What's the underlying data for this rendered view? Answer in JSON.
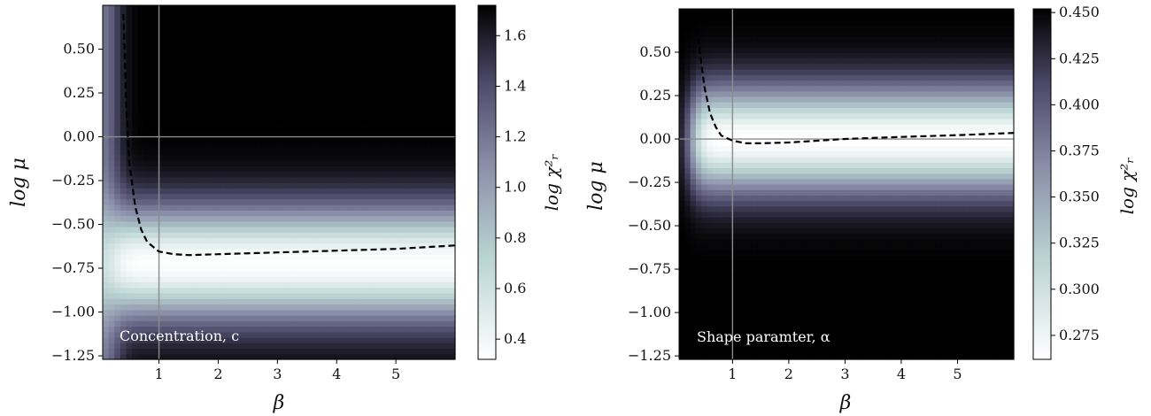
{
  "chart_data": [
    {
      "type": "heatmap",
      "annotation": "Concentration, c",
      "xlabel": "β",
      "ylabel": "log μ",
      "colorbar_label": "log χ²ᵣ",
      "xlim": [
        0.05,
        6.0
      ],
      "ylim": [
        -1.27,
        0.75
      ],
      "xticks": [
        1,
        2,
        3,
        4,
        5
      ],
      "xtick_labels": [
        "1",
        "2",
        "3",
        "4",
        "5"
      ],
      "yticks": [
        0.5,
        0.25,
        0.0,
        -0.25,
        -0.5,
        -0.75,
        -1.0,
        -1.25
      ],
      "ytick_labels": [
        "0.50",
        "0.25",
        "0.00",
        "−0.25",
        "−0.50",
        "−0.75",
        "−1.00",
        "−1.25"
      ],
      "crosshair": {
        "x": 1.0,
        "y": 0.0
      },
      "colorbar": {
        "range": [
          0.32,
          1.72
        ],
        "ticks": [
          0.4,
          0.6,
          0.8,
          1.0,
          1.2,
          1.4,
          1.6
        ],
        "tick_labels": [
          "0.4",
          "0.6",
          "0.8",
          "1.0",
          "1.2",
          "1.4",
          "1.6"
        ]
      },
      "field": {
        "min_log_mu": -0.72,
        "sigma_log_mu": 0.32,
        "floor": 0.33,
        "peak": 1.72
      },
      "dashed_curve": {
        "x": [
          0.4,
          0.45,
          0.5,
          0.6,
          0.7,
          0.8,
          1.0,
          1.25,
          1.5,
          2.0,
          3.0,
          4.0,
          5.0,
          6.0
        ],
        "y": [
          0.7,
          0.15,
          -0.15,
          -0.4,
          -0.53,
          -0.6,
          -0.655,
          -0.67,
          -0.675,
          -0.67,
          -0.66,
          -0.65,
          -0.64,
          -0.62
        ]
      }
    },
    {
      "type": "heatmap",
      "annotation": "Shape paramter, α",
      "xlabel": "β",
      "ylabel": "log μ",
      "colorbar_label": "log χ²ᵣ",
      "xlim": [
        0.05,
        6.0
      ],
      "ylim": [
        -1.27,
        0.75
      ],
      "xticks": [
        1,
        2,
        3,
        4,
        5
      ],
      "xtick_labels": [
        "1",
        "2",
        "3",
        "4",
        "5"
      ],
      "yticks": [
        0.5,
        0.25,
        0.0,
        -0.25,
        -0.5,
        -0.75,
        -1.0,
        -1.25
      ],
      "ytick_labels": [
        "0.50",
        "0.25",
        "0.00",
        "−0.25",
        "−0.50",
        "−0.75",
        "−1.00",
        "−1.25"
      ],
      "crosshair": {
        "x": 1.0,
        "y": 0.0
      },
      "colorbar": {
        "range": [
          0.262,
          0.452
        ],
        "ticks": [
          0.275,
          0.3,
          0.325,
          0.35,
          0.375,
          0.4,
          0.425,
          0.45
        ],
        "tick_labels": [
          "0.275",
          "0.300",
          "0.325",
          "0.350",
          "0.375",
          "0.400",
          "0.425",
          "0.450"
        ]
      },
      "field": {
        "min_log_mu": 0.0,
        "sigma_log_mu": 0.3,
        "floor": 0.262,
        "peak": 0.452
      },
      "dashed_curve": {
        "x": [
          0.35,
          0.4,
          0.5,
          0.6,
          0.7,
          0.8,
          1.0,
          1.25,
          1.5,
          2.0,
          3.0,
          4.0,
          5.0,
          6.0
        ],
        "y": [
          0.75,
          0.55,
          0.3,
          0.15,
          0.07,
          0.02,
          -0.01,
          -0.025,
          -0.025,
          -0.02,
          0.0,
          0.012,
          0.022,
          0.035
        ]
      }
    }
  ]
}
